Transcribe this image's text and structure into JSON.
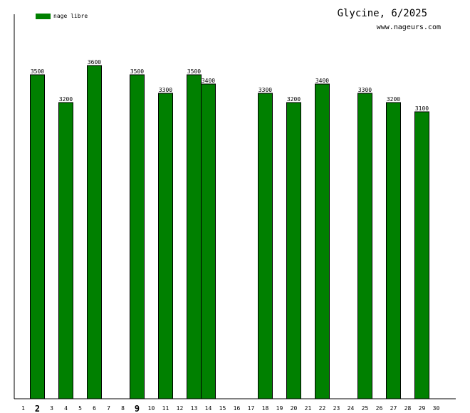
{
  "chart_data": {
    "type": "bar",
    "title": "Glycine, 6/2025",
    "subtitle": "www.nageurs.com",
    "legend": {
      "label": "nage libre",
      "color": "#008000",
      "placement": "top-left"
    },
    "categories": [
      "1",
      "2",
      "3",
      "4",
      "5",
      "6",
      "7",
      "8",
      "9",
      "10",
      "11",
      "12",
      "13",
      "14",
      "15",
      "16",
      "17",
      "18",
      "19",
      "20",
      "21",
      "22",
      "23",
      "24",
      "25",
      "26",
      "27",
      "28",
      "29",
      "30"
    ],
    "highlighted_categories": [
      "2",
      "9"
    ],
    "series": [
      {
        "name": "nage libre",
        "color": "#008000",
        "values": [
          null,
          3500,
          null,
          3200,
          null,
          3600,
          null,
          null,
          3500,
          null,
          3300,
          null,
          3500,
          3400,
          null,
          null,
          null,
          3300,
          null,
          3200,
          null,
          3400,
          null,
          null,
          3300,
          null,
          3200,
          null,
          3100,
          null
        ]
      }
    ],
    "data_labels": [
      "",
      "3500",
      "",
      "3200",
      "",
      "3600",
      "",
      "",
      "3500",
      "",
      "3300",
      "",
      "3500",
      "3400",
      "",
      "",
      "",
      "3300",
      "",
      "3200",
      "",
      "3400",
      "",
      "",
      "3300",
      "",
      "3200",
      "",
      "3100",
      ""
    ],
    "ylim": [
      0,
      4000
    ],
    "grid": false,
    "xlabel": "",
    "ylabel": ""
  }
}
